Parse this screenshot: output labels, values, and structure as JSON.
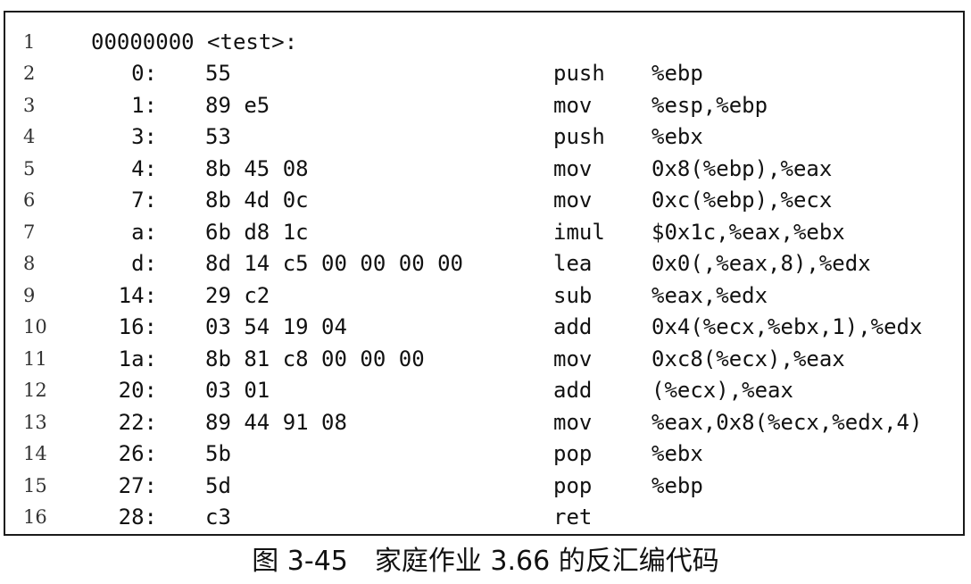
{
  "listing": {
    "header": {
      "number": "1",
      "text": "00000000 <test>:"
    },
    "rows": [
      {
        "number": "2",
        "address": "0:",
        "bytes": "55",
        "mnemonic": "push",
        "operands": "%ebp"
      },
      {
        "number": "3",
        "address": "1:",
        "bytes": "89 e5",
        "mnemonic": "mov",
        "operands": "%esp,%ebp"
      },
      {
        "number": "4",
        "address": "3:",
        "bytes": "53",
        "mnemonic": "push",
        "operands": "%ebx"
      },
      {
        "number": "5",
        "address": "4:",
        "bytes": "8b 45 08",
        "mnemonic": "mov",
        "operands": "0x8(%ebp),%eax"
      },
      {
        "number": "6",
        "address": "7:",
        "bytes": "8b 4d 0c",
        "mnemonic": "mov",
        "operands": "0xc(%ebp),%ecx"
      },
      {
        "number": "7",
        "address": "a:",
        "bytes": "6b d8 1c",
        "mnemonic": "imul",
        "operands": "$0x1c,%eax,%ebx"
      },
      {
        "number": "8",
        "address": "d:",
        "bytes": "8d 14 c5 00 00 00 00",
        "mnemonic": "lea",
        "operands": "0x0(,%eax,8),%edx"
      },
      {
        "number": "9",
        "address": "14:",
        "bytes": "29 c2",
        "mnemonic": "sub",
        "operands": "%eax,%edx"
      },
      {
        "number": "10",
        "address": "16:",
        "bytes": "03 54 19 04",
        "mnemonic": "add",
        "operands": "0x4(%ecx,%ebx,1),%edx"
      },
      {
        "number": "11",
        "address": "1a:",
        "bytes": "8b 81 c8 00 00 00",
        "mnemonic": "mov",
        "operands": "0xc8(%ecx),%eax"
      },
      {
        "number": "12",
        "address": "20:",
        "bytes": "03 01",
        "mnemonic": "add",
        "operands": "(%ecx),%eax"
      },
      {
        "number": "13",
        "address": "22:",
        "bytes": "89 44 91 08",
        "mnemonic": "mov",
        "operands": "%eax,0x8(%ecx,%edx,4)"
      },
      {
        "number": "14",
        "address": "26:",
        "bytes": "5b",
        "mnemonic": "pop",
        "operands": "%ebx"
      },
      {
        "number": "15",
        "address": "27:",
        "bytes": "5d",
        "mnemonic": "pop",
        "operands": "%ebp"
      },
      {
        "number": "16",
        "address": "28:",
        "bytes": "c3",
        "mnemonic": "ret",
        "operands": ""
      }
    ]
  },
  "caption": "图 3-45　家庭作业 3.66 的反汇编代码"
}
